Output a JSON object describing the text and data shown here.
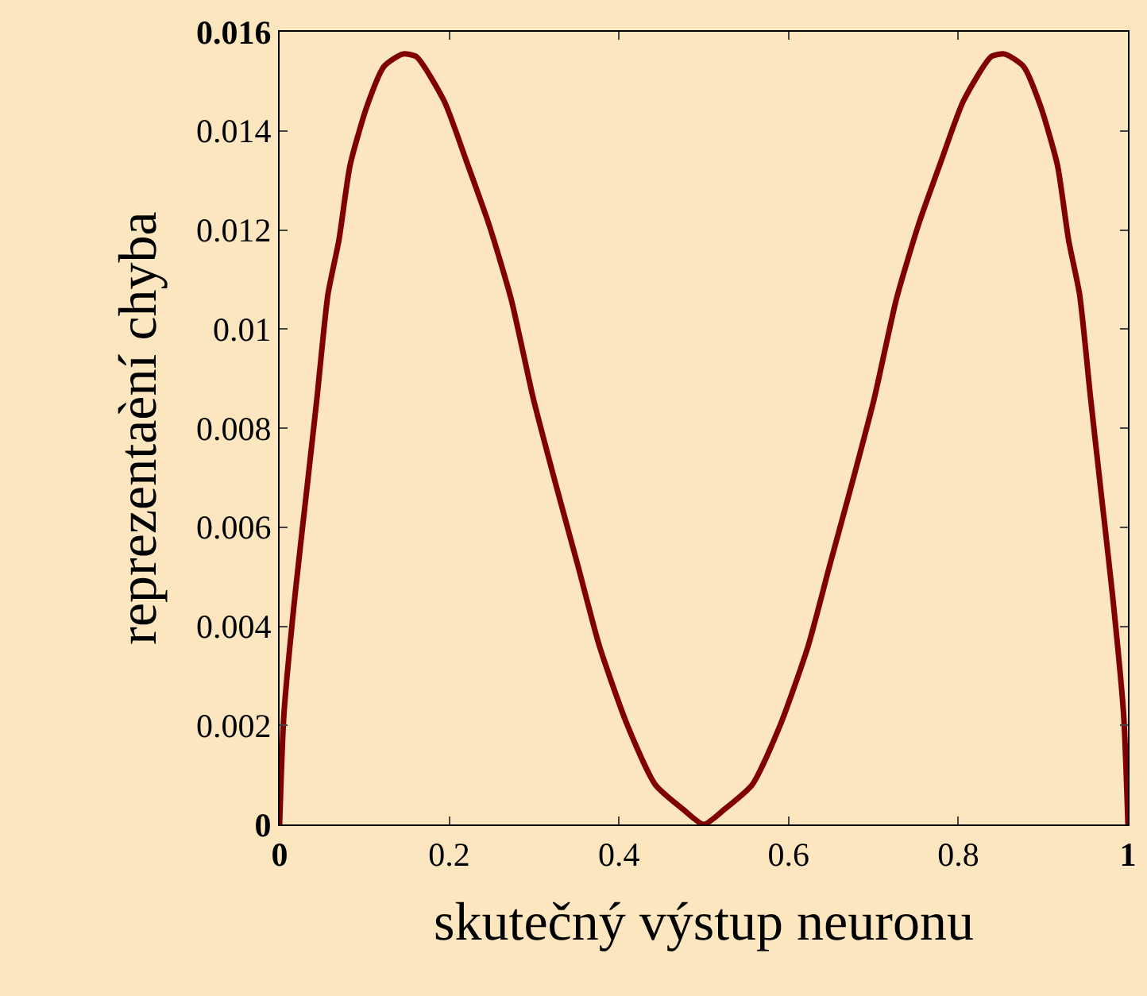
{
  "chart_data": {
    "type": "line",
    "xlabel": "skutečný výstup neuronu",
    "ylabel": "reprezentaèní chyba",
    "x": [
      0,
      0.005,
      0.018,
      0.031,
      0.044,
      0.057,
      0.07,
      0.083,
      0.103,
      0.123,
      0.145,
      0.161,
      0.194,
      0.22,
      0.247,
      0.273,
      0.299,
      0.325,
      0.352,
      0.377,
      0.41,
      0.443,
      0.476,
      0.5,
      0.524,
      0.557,
      0.59,
      0.623,
      0.648,
      0.675,
      0.701,
      0.727,
      0.753,
      0.78,
      0.806,
      0.839,
      0.855,
      0.877,
      0.897,
      0.917,
      0.93,
      0.943,
      0.956,
      0.969,
      0.982,
      0.995,
      1
    ],
    "series": [
      {
        "color": "#800000",
        "values": [
          0,
          0.0022,
          0.0046,
          0.0066,
          0.0086,
          0.0107,
          0.0118,
          0.0133,
          0.0145,
          0.0153,
          0.01555,
          0.0155,
          0.0146,
          0.0134,
          0.0121,
          0.0106,
          0.0086,
          0.0069,
          0.0052,
          0.0036,
          0.002,
          0.0008,
          0.0003,
          0,
          0.0003,
          0.0008,
          0.002,
          0.0036,
          0.0052,
          0.0069,
          0.0086,
          0.0106,
          0.0121,
          0.0134,
          0.0146,
          0.0155,
          0.01555,
          0.0153,
          0.0145,
          0.0133,
          0.0118,
          0.0107,
          0.0086,
          0.0066,
          0.0046,
          0.0022,
          0
        ]
      }
    ],
    "xlim": [
      0,
      1
    ],
    "ylim": [
      0,
      0.016
    ],
    "xticks": [
      0,
      0.2,
      0.4,
      0.6,
      0.8,
      1
    ],
    "yticks": [
      0,
      0.002,
      0.004,
      0.006,
      0.008,
      0.01,
      0.012,
      0.014,
      0.016
    ],
    "grid": false,
    "legend": false,
    "marker": "none",
    "line_style": "solid"
  }
}
